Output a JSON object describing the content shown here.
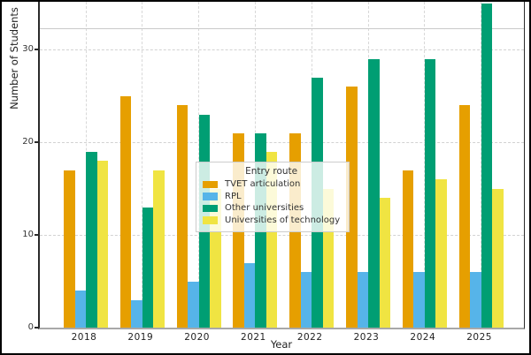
{
  "chart_data": {
    "type": "bar",
    "title": "",
    "xlabel": "Year",
    "ylabel": "Number of Students",
    "categories": [
      "2018",
      "2019",
      "2020",
      "2021",
      "2022",
      "2023",
      "2024",
      "2025"
    ],
    "series": [
      {
        "name": "TVET articulation",
        "color": "#E69F00",
        "values": [
          17,
          25,
          24,
          21,
          21,
          26,
          17,
          24
        ]
      },
      {
        "name": "RPL",
        "color": "#56B4E9",
        "values": [
          4,
          3,
          5,
          7,
          6,
          6,
          6,
          6
        ]
      },
      {
        "name": "Other universities",
        "color": "#009E73",
        "values": [
          19,
          13,
          23,
          21,
          27,
          29,
          29,
          35
        ]
      },
      {
        "name": "Universities of technology",
        "color": "#F0E442",
        "values": [
          18,
          17,
          15,
          19,
          15,
          14,
          16,
          15
        ]
      }
    ],
    "yticks": [
      0,
      10,
      20,
      30
    ],
    "ylim": [
      0,
      35.2
    ],
    "grid": true,
    "legend": {
      "title": "Entry route",
      "position": "center"
    },
    "layout_note": "2025 'Other universities' bar is clipped at the top edge of the figure"
  }
}
